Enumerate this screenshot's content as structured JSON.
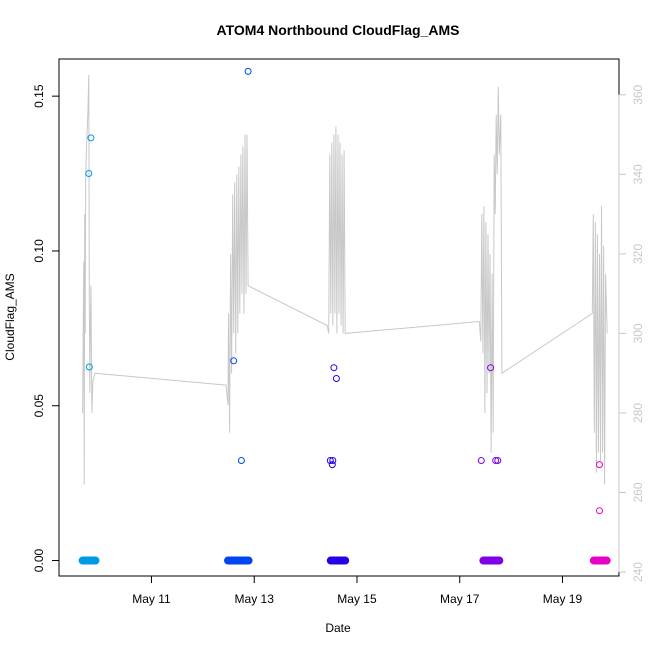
{
  "chart_data": {
    "type": "scatter",
    "title": "ATOM4 Northbound CloudFlag_AMS",
    "xlabel": "Date",
    "ylabel": "CloudFlag_AMS",
    "x_unit": "days",
    "x_ticks": [
      {
        "label": "May 11",
        "value": 11
      },
      {
        "label": "May 13",
        "value": 13
      },
      {
        "label": "May 15",
        "value": 15
      },
      {
        "label": "May 17",
        "value": 17
      },
      {
        "label": "May 19",
        "value": 19
      }
    ],
    "xlim": [
      9.2,
      20.1
    ],
    "ylim": [
      -0.005,
      0.162
    ],
    "y_ticks": [
      "0.00",
      "0.05",
      "0.10",
      "0.15"
    ],
    "y_right_lim": [
      239,
      369
    ],
    "y_right_ticks": [
      "240",
      "260",
      "280",
      "300",
      "320",
      "340",
      "360"
    ],
    "grid": false,
    "segments": [
      {
        "name": "",
        "color": "#0099e6",
        "x_range": [
          9.67,
          9.9
        ],
        "zero_band": [
          9.65,
          9.92
        ],
        "points": [
          [
            9.78,
            0.125
          ],
          [
            9.82,
            0.1365
          ],
          [
            9.79,
            0.0625
          ]
        ]
      },
      {
        "name": "",
        "color": "#0046f0",
        "x_range": [
          12.5,
          12.9
        ],
        "zero_band": [
          12.48,
          12.9
        ],
        "points": [
          [
            12.88,
            0.158
          ],
          [
            12.6,
            0.0645
          ],
          [
            12.75,
            0.0323
          ]
        ]
      },
      {
        "name": "",
        "color": "#2800e6",
        "x_range": [
          14.5,
          14.8
        ],
        "zero_band": [
          14.48,
          14.78
        ],
        "points": [
          [
            14.55,
            0.0623
          ],
          [
            14.6,
            0.0588
          ],
          [
            14.48,
            0.0323
          ],
          [
            14.53,
            0.0323
          ],
          [
            14.52,
            0.031
          ]
        ]
      },
      {
        "name": "",
        "color": "#8000e6",
        "x_range": [
          17.45,
          17.8
        ],
        "zero_band": [
          17.45,
          17.78
        ],
        "points": [
          [
            17.6,
            0.0623
          ],
          [
            17.42,
            0.0323
          ],
          [
            17.7,
            0.0323
          ],
          [
            17.74,
            0.0323
          ]
        ]
      },
      {
        "name": "",
        "color": "#e600c8",
        "x_range": [
          19.6,
          19.87
        ],
        "zero_band": [
          19.6,
          19.87
        ],
        "points": [
          [
            19.72,
            0.031
          ],
          [
            19.72,
            0.0161
          ]
        ]
      }
    ],
    "secondary_line": {
      "color": "#c8c8c8",
      "points": [
        [
          9.66,
          280
        ],
        [
          9.68,
          318
        ],
        [
          9.69,
          262
        ],
        [
          9.7,
          330
        ],
        [
          9.71,
          300
        ],
        [
          9.72,
          340
        ],
        [
          9.74,
          348
        ],
        [
          9.76,
          355
        ],
        [
          9.78,
          365
        ],
        [
          9.79,
          310
        ],
        [
          9.8,
          285
        ],
        [
          9.81,
          300
        ],
        [
          9.82,
          312
        ],
        [
          9.84,
          280
        ],
        [
          9.86,
          288
        ],
        [
          9.9,
          290
        ],
        [
          12.45,
          287
        ],
        [
          12.49,
          282
        ],
        [
          12.5,
          305
        ],
        [
          12.52,
          275
        ],
        [
          12.54,
          320
        ],
        [
          12.56,
          290
        ],
        [
          12.58,
          335
        ],
        [
          12.6,
          300
        ],
        [
          12.62,
          338
        ],
        [
          12.64,
          295
        ],
        [
          12.66,
          340
        ],
        [
          12.68,
          300
        ],
        [
          12.7,
          342
        ],
        [
          12.72,
          305
        ],
        [
          12.74,
          345
        ],
        [
          12.76,
          310
        ],
        [
          12.78,
          347
        ],
        [
          12.8,
          305
        ],
        [
          12.82,
          350
        ],
        [
          12.84,
          310
        ],
        [
          12.86,
          350
        ],
        [
          12.88,
          312
        ],
        [
          14.42,
          302
        ],
        [
          14.45,
          300
        ],
        [
          14.47,
          345
        ],
        [
          14.49,
          305
        ],
        [
          14.51,
          348
        ],
        [
          14.53,
          302
        ],
        [
          14.55,
          350
        ],
        [
          14.57,
          305
        ],
        [
          14.59,
          352
        ],
        [
          14.61,
          300
        ],
        [
          14.63,
          350
        ],
        [
          14.65,
          305
        ],
        [
          14.67,
          348
        ],
        [
          14.69,
          302
        ],
        [
          14.71,
          345
        ],
        [
          14.73,
          300
        ],
        [
          14.75,
          346
        ],
        [
          14.77,
          300
        ],
        [
          17.38,
          303
        ],
        [
          17.41,
          298
        ],
        [
          17.43,
          330
        ],
        [
          17.45,
          295
        ],
        [
          17.47,
          332
        ],
        [
          17.49,
          280
        ],
        [
          17.51,
          328
        ],
        [
          17.53,
          285
        ],
        [
          17.55,
          325
        ],
        [
          17.57,
          290
        ],
        [
          17.59,
          320
        ],
        [
          17.61,
          270
        ],
        [
          17.63,
          315
        ],
        [
          17.65,
          275
        ],
        [
          17.67,
          345
        ],
        [
          17.69,
          330
        ],
        [
          17.71,
          355
        ],
        [
          17.73,
          340
        ],
        [
          17.75,
          362
        ],
        [
          17.77,
          345
        ],
        [
          17.8,
          355
        ],
        [
          17.82,
          290
        ],
        [
          19.58,
          305
        ],
        [
          19.6,
          330
        ],
        [
          19.62,
          275
        ],
        [
          19.64,
          328
        ],
        [
          19.66,
          265
        ],
        [
          19.68,
          325
        ],
        [
          19.7,
          270
        ],
        [
          19.72,
          320
        ],
        [
          19.74,
          268
        ],
        [
          19.76,
          332
        ],
        [
          19.78,
          270
        ],
        [
          19.8,
          322
        ],
        [
          19.82,
          262
        ],
        [
          19.84,
          315
        ],
        [
          19.87,
          300
        ]
      ]
    }
  }
}
